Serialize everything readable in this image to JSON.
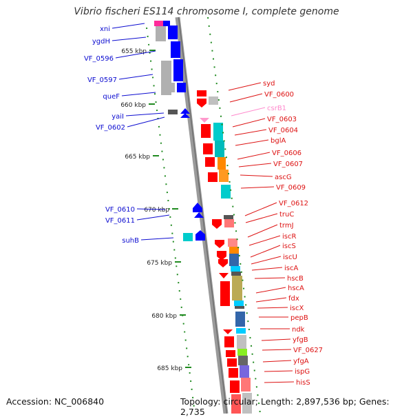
{
  "title": "Vibrio fischeri ES114 chromosome I, complete genome",
  "accession_text": "Accession: NC_006840",
  "topology_text": "Topology: circular; Length: 2,897,536 bp; Genes: 2,735",
  "colors": {
    "left_labels": "#0b0bd0",
    "right_labels": "#dd1111",
    "pink_label": "#ff88cc",
    "ticks": "#1f8a1f",
    "backbone": "#9a9a9a"
  },
  "kbp_ticks": [
    "655 kbp",
    "660 kbp",
    "665 kbp",
    "670 kbp",
    "675 kbp",
    "680 kbp",
    "685 kbp"
  ],
  "left_genes": [
    "xni",
    "ygdH",
    "VF_0596",
    "VF_0597",
    "queF",
    "yaiI",
    "VF_0602",
    "VF_0610",
    "VF_0611",
    "suhB"
  ],
  "right_genes": [
    "syd",
    "VF_0600",
    "csrB1",
    "VF_0603",
    "VF_0604",
    "bglA",
    "VF_0606",
    "VF_0607",
    "ascG",
    "VF_0609",
    "VF_0612",
    "truC",
    "trmJ",
    "iscR",
    "iscS",
    "iscU",
    "iscA",
    "hscB",
    "hscA",
    "fdx",
    "iscX",
    "pepB",
    "ndk",
    "yfgB",
    "VF_0627",
    "yfgA",
    "ispG",
    "hisS"
  ]
}
